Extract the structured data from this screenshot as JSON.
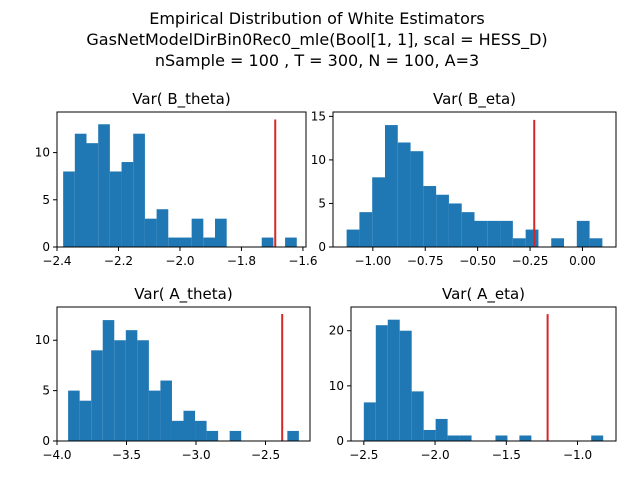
{
  "figure": {
    "title_lines": [
      "Empirical Distribution of White Estimators",
      "GasNetModelDirBin0Rec0_mle(Bool[1, 1], scal = HESS_D)",
      "nSample = 100 , T = 300, N = 100, A=3"
    ],
    "bar_color": "#1f77b4",
    "ref_line_color": "#d62728"
  },
  "chart_data": [
    {
      "type": "bar",
      "title": "Var( B_theta)",
      "bin_edges": [
        -2.38,
        -2.342,
        -2.304,
        -2.266,
        -2.228,
        -2.19,
        -2.152,
        -2.114,
        -2.076,
        -2.038,
        -2.0,
        -1.962,
        -1.924,
        -1.886,
        -1.848,
        -1.81,
        -1.772,
        -1.734,
        -1.696,
        -1.658,
        -1.62
      ],
      "counts": [
        8,
        12,
        11,
        13,
        8,
        9,
        12,
        3,
        4,
        1,
        1,
        3,
        1,
        3,
        0,
        0,
        0,
        1,
        0,
        1
      ],
      "ref_line": -1.69,
      "ref_line_top": 13.5,
      "xlim": [
        -2.4,
        -1.59
      ],
      "ylim": [
        0,
        14.3
      ],
      "xticks": [
        -2.4,
        -2.2,
        -2.0,
        -1.8,
        -1.6
      ],
      "xtick_labels": [
        "−2.4",
        "−2.2",
        "−2.0",
        "−1.8",
        "−1.6"
      ],
      "yticks": [
        0,
        5,
        10
      ],
      "ytick_labels": [
        "0",
        "5",
        "10"
      ]
    },
    {
      "type": "bar",
      "title": "Var( B_eta)",
      "bin_edges": [
        -1.125,
        -1.064,
        -1.003,
        -0.942,
        -0.881,
        -0.82,
        -0.759,
        -0.698,
        -0.637,
        -0.576,
        -0.515,
        -0.454,
        -0.393,
        -0.332,
        -0.271,
        -0.21,
        -0.149,
        -0.088,
        -0.027,
        0.034,
        0.095
      ],
      "counts": [
        2,
        4,
        8,
        14,
        12,
        11,
        7,
        6,
        5,
        4,
        3,
        3,
        3,
        1,
        2,
        0,
        1,
        0,
        3,
        1
      ],
      "ref_line": -0.23,
      "ref_line_top": 14.6,
      "xlim": [
        -1.19,
        0.16
      ],
      "ylim": [
        0,
        15.5
      ],
      "xticks": [
        -1.0,
        -0.75,
        -0.5,
        -0.25,
        0.0
      ],
      "xtick_labels": [
        "−1.00",
        "−0.75",
        "−0.50",
        "−0.25",
        "0.00"
      ],
      "yticks": [
        0,
        5,
        10,
        15
      ],
      "ytick_labels": [
        "0",
        "5",
        "10",
        "15"
      ]
    },
    {
      "type": "bar",
      "title": "Var( A_theta)",
      "bin_edges": [
        -3.92,
        -3.837,
        -3.754,
        -3.671,
        -3.588,
        -3.505,
        -3.422,
        -3.339,
        -3.256,
        -3.173,
        -3.09,
        -3.007,
        -2.924,
        -2.841,
        -2.758,
        -2.675,
        -2.592,
        -2.509,
        -2.426,
        -2.343,
        -2.26
      ],
      "counts": [
        5,
        4,
        9,
        12,
        10,
        11,
        10,
        5,
        6,
        2,
        3,
        2,
        1,
        0,
        1,
        0,
        0,
        0,
        0,
        1
      ],
      "ref_line": -2.38,
      "ref_line_top": 12.6,
      "xlim": [
        -4.0,
        -2.18
      ],
      "ylim": [
        0,
        13.3
      ],
      "xticks": [
        -4.0,
        -3.5,
        -3.0,
        -2.5
      ],
      "xtick_labels": [
        "−4.0",
        "−3.5",
        "−3.0",
        "−2.5"
      ],
      "yticks": [
        0,
        5,
        10
      ],
      "ytick_labels": [
        "0",
        "5",
        "10"
      ]
    },
    {
      "type": "bar",
      "title": "Var( A_eta)",
      "bin_edges": [
        -2.5,
        -2.416,
        -2.332,
        -2.248,
        -2.164,
        -2.08,
        -1.996,
        -1.912,
        -1.828,
        -1.744,
        -1.66,
        -1.576,
        -1.492,
        -1.408,
        -1.324,
        -1.24,
        -1.156,
        -1.072,
        -0.988,
        -0.904,
        -0.82
      ],
      "counts": [
        7,
        21,
        22,
        20,
        9,
        2,
        4,
        1,
        1,
        0,
        0,
        1,
        0,
        1,
        0,
        0,
        0,
        0,
        0,
        1
      ],
      "ref_line": -1.21,
      "ref_line_top": 23.0,
      "xlim": [
        -2.59,
        -0.73
      ],
      "ylim": [
        0,
        24.3
      ],
      "xticks": [
        -2.5,
        -2.0,
        -1.5,
        -1.0
      ],
      "xtick_labels": [
        "−2.5",
        "−2.0",
        "−1.5",
        "−1.0"
      ],
      "yticks": [
        0,
        10,
        20
      ],
      "ytick_labels": [
        "0",
        "10",
        "20"
      ]
    }
  ]
}
